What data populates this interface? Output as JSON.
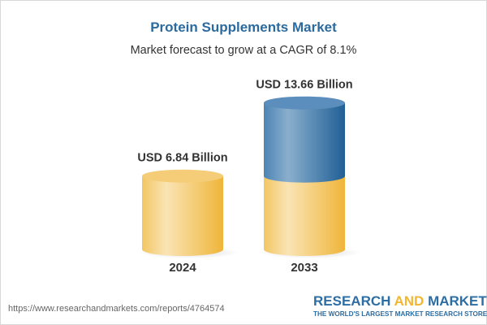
{
  "header": {
    "title": "Protein Supplements Market",
    "subtitle": "Market forecast to grow at a CAGR of 8.1%"
  },
  "chart_data": {
    "type": "bar",
    "style": "3d-cylinder",
    "categories": [
      "2024",
      "2033"
    ],
    "values": [
      6.84,
      13.66
    ],
    "data_labels": [
      "USD 6.84 Billion",
      "USD 13.66 Billion"
    ],
    "unit": "USD Billion",
    "colors": {
      "base": "#f3c25a",
      "growth": "#3d76aa"
    },
    "grid": false
  },
  "footer": {
    "url": "https://www.researchandmarkets.com/reports/4764574",
    "logo_part1": "RESEARCH ",
    "logo_part2": "AND",
    "logo_part3": " MARKETS",
    "tagline": "THE WORLD'S LARGEST MARKET RESEARCH STORE"
  }
}
